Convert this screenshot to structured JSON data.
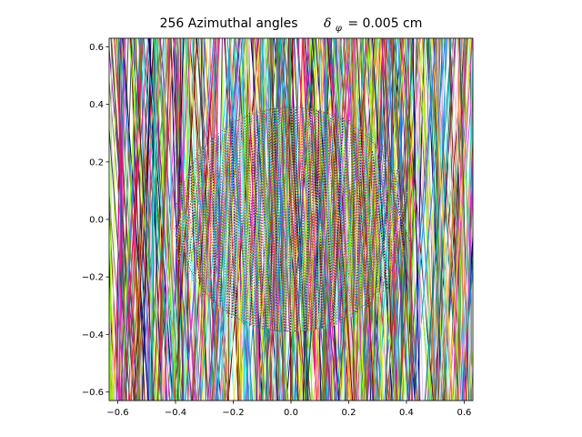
{
  "chart_data": {
    "type": "line",
    "title": {
      "prefix": "256 Azimuthal angles",
      "delta": "δ",
      "subscript": "φ",
      "suffix": "= 0.005 cm"
    },
    "xlabel": "",
    "ylabel": "",
    "xlim": [
      -0.63,
      0.63
    ],
    "ylim": [
      -0.63,
      0.63
    ],
    "xticks": [
      -0.6,
      -0.4,
      -0.2,
      0.0,
      0.2,
      0.4,
      0.6
    ],
    "yticks": [
      -0.6,
      -0.4,
      -0.2,
      0.0,
      0.2,
      0.4,
      0.6
    ],
    "xtick_labels": [
      "−0.6",
      "−0.4",
      "−0.2",
      "0.0",
      "0.2",
      "0.4",
      "0.6"
    ],
    "ytick_labels": [
      "−0.6",
      "−0.4",
      "−0.2",
      "0.0",
      "0.2",
      "0.4",
      "0.6"
    ],
    "num_azimuthal_angles": 256,
    "track_spacing_cm": 0.005,
    "circle": {
      "center": [
        0.0,
        0.0
      ],
      "radius": 0.39
    },
    "grid": false,
    "legend": "none",
    "palette": [
      "#e6194b",
      "#3cb44b",
      "#ffe119",
      "#4363d8",
      "#f58231",
      "#911eb4",
      "#46f0f0",
      "#f032e6",
      "#bcf60c",
      "#fabebe",
      "#008080",
      "#e6beff",
      "#9a6324",
      "#800000",
      "#aaffc3",
      "#808000",
      "#000075",
      "#808080",
      "#1e90ff",
      "#ff1493",
      "#00ced1",
      "#7fff00",
      "#8b4513",
      "#2f4f4f"
    ]
  }
}
